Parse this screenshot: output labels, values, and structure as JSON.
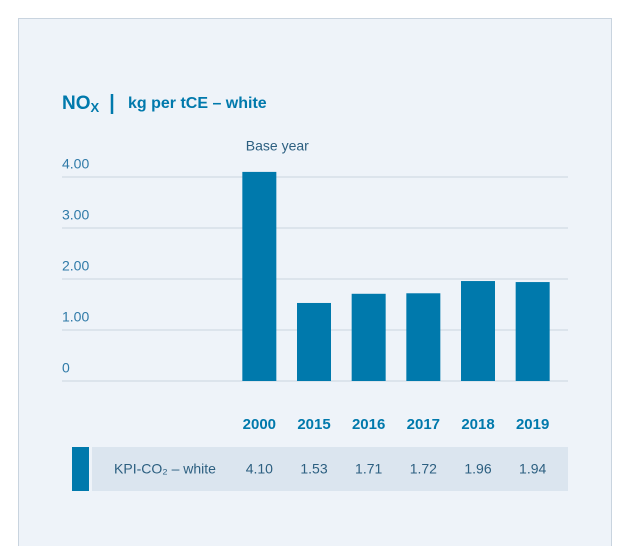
{
  "chart_data": {
    "type": "bar",
    "title": "NO",
    "title_subscript": "X",
    "subtitle": "kg per tCE – white",
    "annotation": "Base year",
    "categories": [
      "2000",
      "2015",
      "2016",
      "2017",
      "2018",
      "2019"
    ],
    "series": [
      {
        "name": "KPI-CO₂ – white",
        "color": "#0079ac",
        "values": [
          4.1,
          1.53,
          1.71,
          1.72,
          1.96,
          1.94
        ],
        "value_labels": [
          "4.10",
          "1.53",
          "1.71",
          "1.72",
          "1.96",
          "1.94"
        ]
      }
    ],
    "ylim": [
      0,
      4.4
    ],
    "yticks": [
      0,
      {
        "value": 1,
        "label": "1.00"
      },
      {
        "value": 2,
        "label": "2.00"
      },
      {
        "value": 3,
        "label": "3.00"
      },
      {
        "value": 4,
        "label": "4.00"
      }
    ],
    "grid": true
  }
}
